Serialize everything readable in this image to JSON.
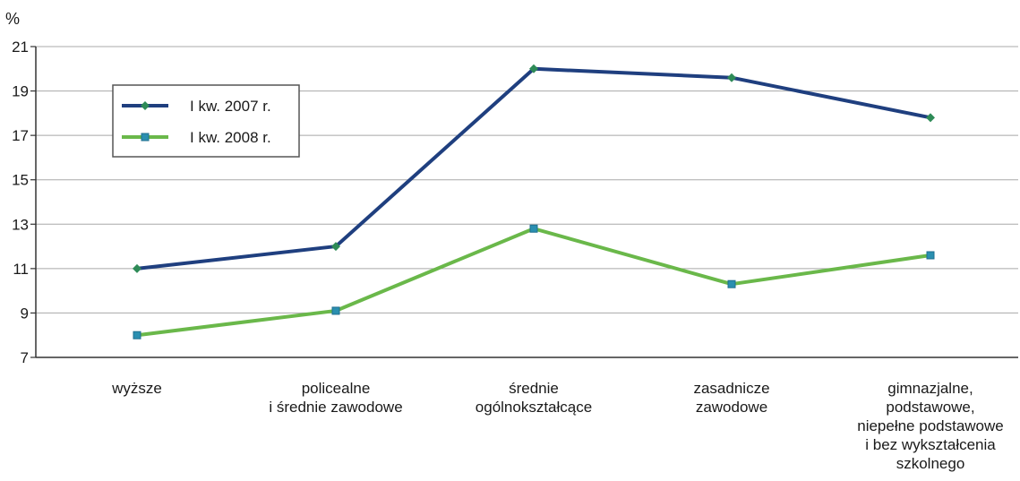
{
  "chart_data": {
    "type": "line",
    "ylabel": "%",
    "ylim": [
      7,
      21
    ],
    "yticks": [
      7,
      9,
      11,
      13,
      15,
      17,
      19,
      21
    ],
    "grid": true,
    "legend_position": "top-left",
    "categories": [
      [
        "wyższe"
      ],
      [
        "policealne",
        "i średnie zawodowe"
      ],
      [
        "średnie",
        "ogólnokształcące"
      ],
      [
        "zasadnicze",
        "zawodowe"
      ],
      [
        "gimnazjalne,",
        "podstawowe,",
        "niepełne podstawowe",
        "i bez wykształcenia",
        "szkolnego"
      ]
    ],
    "series": [
      {
        "name": "I kw. 2007 r.",
        "color": "#1f3f7f",
        "marker_color": "#2e8b57",
        "marker": "diamond",
        "values": [
          11.0,
          12.0,
          20.0,
          19.6,
          17.8
        ]
      },
      {
        "name": "I kw. 2008 r.",
        "color": "#6ab84a",
        "marker_color": "#2a8fb0",
        "marker": "square",
        "values": [
          8.0,
          9.1,
          12.8,
          10.3,
          11.6
        ]
      }
    ]
  }
}
